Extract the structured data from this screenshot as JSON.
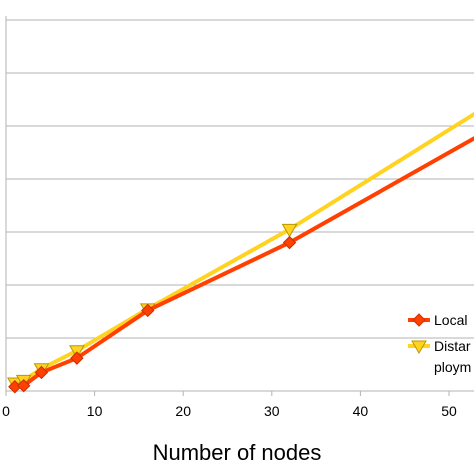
{
  "chart_data": {
    "type": "line",
    "title": "",
    "xlabel": "Number of nodes",
    "ylabel": "",
    "xlim": [
      0,
      55
    ],
    "ylim": [
      0,
      7.2
    ],
    "grid": true,
    "legend_position": "right",
    "x_ticks": [
      "0",
      "10",
      "20",
      "30",
      "40",
      "50"
    ],
    "series": [
      {
        "name": "Local",
        "color": "#ff4000",
        "marker": "diamond",
        "x": [
          1,
          2,
          4,
          8,
          16,
          32,
          55
        ],
        "y": [
          0.08,
          0.1,
          0.35,
          0.62,
          1.52,
          2.8,
          4.97
        ]
      },
      {
        "name": "Distar ploym",
        "color": "#ffd320",
        "marker": "triangle-down",
        "x": [
          1,
          2,
          4,
          8,
          16,
          32,
          55
        ],
        "y": [
          0.15,
          0.2,
          0.42,
          0.76,
          1.55,
          3.05,
          5.45
        ]
      }
    ]
  },
  "legend": {
    "items": [
      {
        "label": "Local"
      },
      {
        "label": "Distar",
        "label2": "ploym"
      }
    ]
  }
}
